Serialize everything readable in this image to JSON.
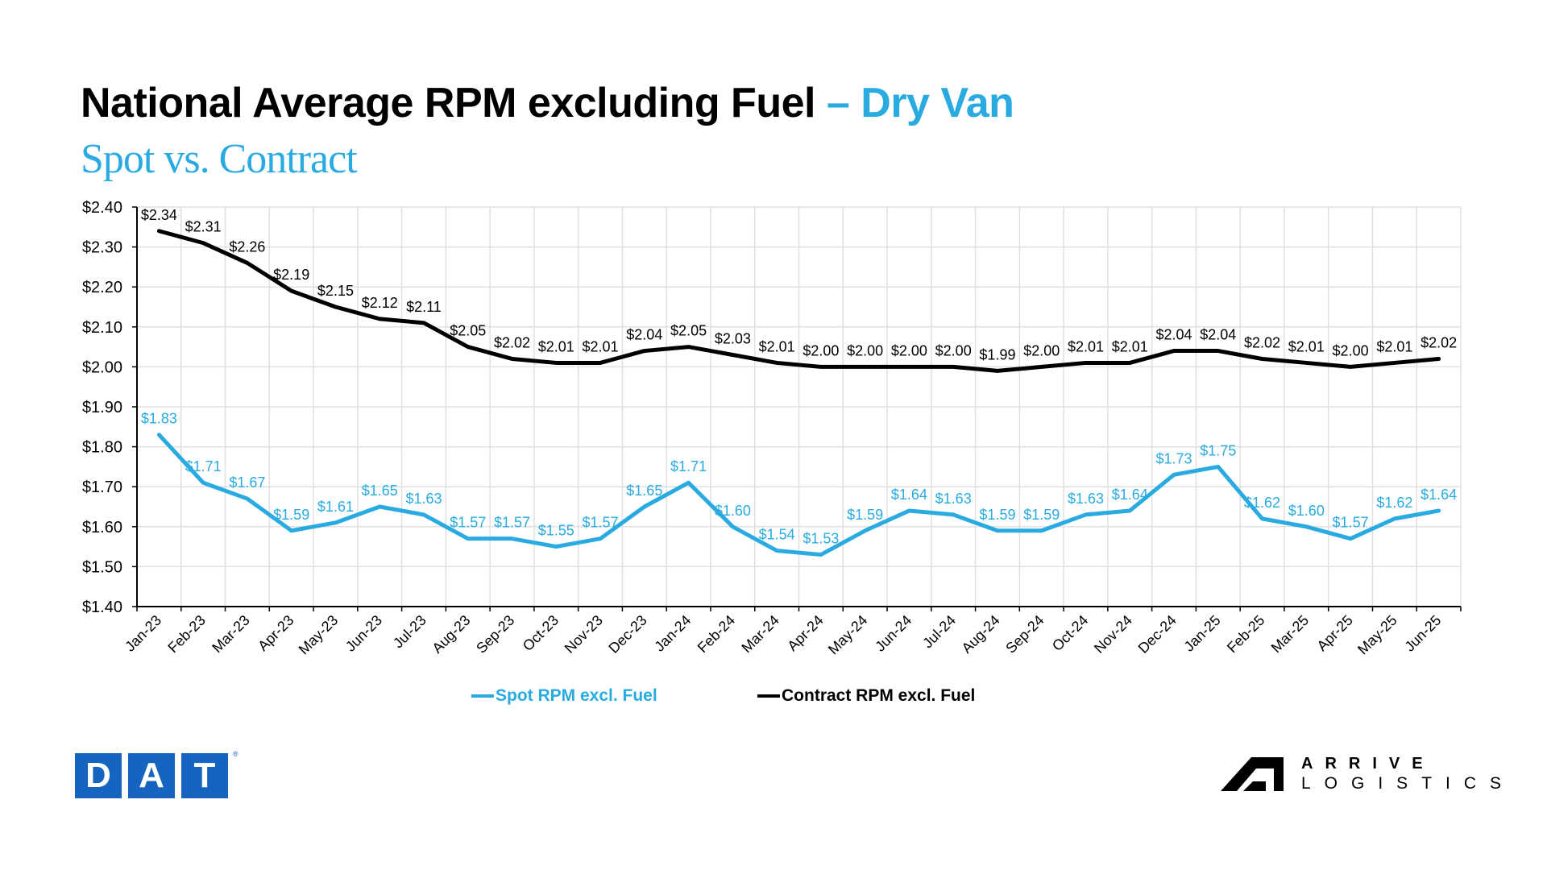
{
  "header": {
    "title_main": "National Average RPM excluding Fuel",
    "title_accent": " – Dry Van",
    "subtitle": "Spot vs. Contract"
  },
  "colors": {
    "spot": "#29abe2",
    "contract": "#000000",
    "grid": "#e0e0e0",
    "dat_blue": "#1565c0"
  },
  "legend": {
    "spot_label": "Spot RPM excl. Fuel",
    "contract_label": "Contract RPM excl. Fuel"
  },
  "logos": {
    "dat_letters": [
      "D",
      "A",
      "T"
    ],
    "dat_reg": "®",
    "arrive_line1": "ARRIVE",
    "arrive_line2": "LOGISTICS"
  },
  "chart_data": {
    "type": "line",
    "title": "National Average RPM excluding Fuel – Dry Van",
    "subtitle": "Spot vs. Contract",
    "xlabel": "",
    "ylabel": "",
    "ylim": [
      1.4,
      2.4
    ],
    "yticks": [
      1.4,
      1.5,
      1.6,
      1.7,
      1.8,
      1.9,
      2.0,
      2.1,
      2.2,
      2.3,
      2.4
    ],
    "ytick_labels": [
      "$1.40",
      "$1.50",
      "$1.60",
      "$1.70",
      "$1.80",
      "$1.90",
      "$2.00",
      "$2.10",
      "$2.20",
      "$2.30",
      "$2.40"
    ],
    "grid": true,
    "legend_position": "bottom",
    "categories": [
      "Jan-23",
      "Feb-23",
      "Mar-23",
      "Apr-23",
      "May-23",
      "Jun-23",
      "Jul-23",
      "Aug-23",
      "Sep-23",
      "Oct-23",
      "Nov-23",
      "Dec-23",
      "Jan-24",
      "Feb-24",
      "Mar-24",
      "Apr-24",
      "May-24",
      "Jun-24",
      "Jul-24",
      "Aug-24",
      "Sep-24",
      "Oct-24",
      "Nov-24",
      "Dec-24",
      "Jan-25",
      "Feb-25",
      "Mar-25",
      "Apr-25",
      "May-25",
      "Jun-25"
    ],
    "series": [
      {
        "name": "Spot RPM excl. Fuel",
        "color": "#29abe2",
        "values": [
          1.83,
          1.71,
          1.67,
          1.59,
          1.61,
          1.65,
          1.63,
          1.57,
          1.57,
          1.55,
          1.57,
          1.65,
          1.71,
          1.6,
          1.54,
          1.53,
          1.59,
          1.64,
          1.63,
          1.59,
          1.59,
          1.63,
          1.64,
          1.73,
          1.75,
          1.62,
          1.6,
          1.57,
          1.62,
          1.64
        ]
      },
      {
        "name": "Contract RPM excl. Fuel",
        "color": "#000000",
        "values": [
          2.34,
          2.31,
          2.26,
          2.19,
          2.15,
          2.12,
          2.11,
          2.05,
          2.02,
          2.01,
          2.01,
          2.04,
          2.05,
          2.03,
          2.01,
          2.0,
          2.0,
          2.0,
          2.0,
          1.99,
          2.0,
          2.01,
          2.01,
          2.04,
          2.04,
          2.02,
          2.01,
          2.0,
          2.01,
          2.02
        ]
      }
    ]
  }
}
